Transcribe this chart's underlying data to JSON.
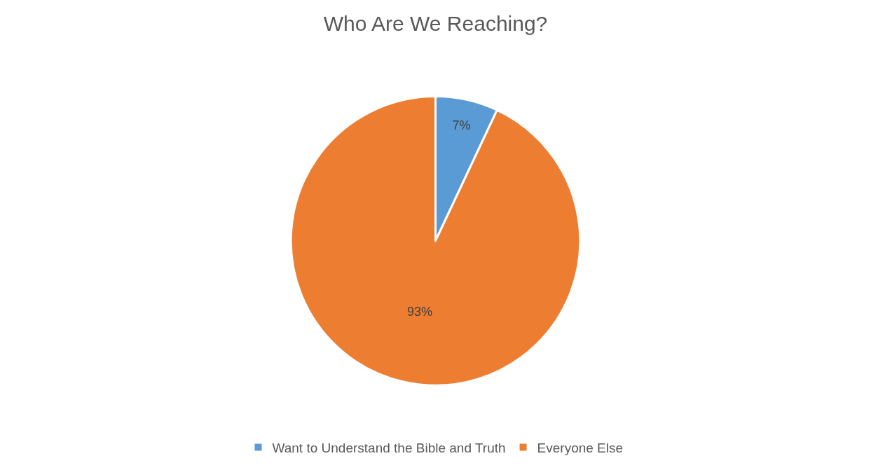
{
  "chart_data": {
    "type": "pie",
    "title": "Who Are We Reaching?",
    "categories": [
      "Want to Understand the Bible and Truth",
      "Everyone Else"
    ],
    "values": [
      7,
      93
    ],
    "value_labels": [
      "7%",
      "93%"
    ],
    "colors": [
      "#5b9bd5",
      "#ed7d31"
    ],
    "legend": "bottom"
  }
}
